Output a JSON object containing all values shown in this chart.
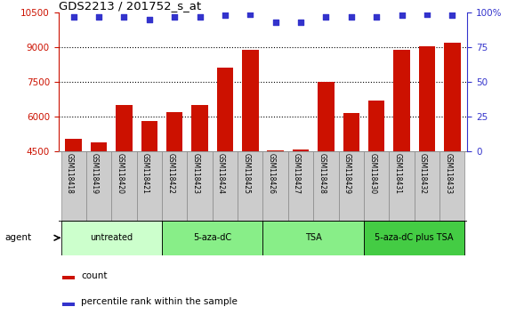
{
  "title": "GDS2213 / 201752_s_at",
  "samples": [
    "GSM118418",
    "GSM118419",
    "GSM118420",
    "GSM118421",
    "GSM118422",
    "GSM118423",
    "GSM118424",
    "GSM118425",
    "GSM118426",
    "GSM118427",
    "GSM118428",
    "GSM118429",
    "GSM118430",
    "GSM118431",
    "GSM118432",
    "GSM118433"
  ],
  "counts": [
    5050,
    4900,
    6500,
    5800,
    6200,
    6500,
    8100,
    8900,
    4550,
    4570,
    7500,
    6150,
    6700,
    8900,
    9050,
    9200
  ],
  "percentiles": [
    97,
    97,
    97,
    95,
    97,
    97,
    98,
    99,
    93,
    93,
    97,
    97,
    97,
    98,
    99,
    98
  ],
  "bar_color": "#cc1100",
  "dot_color": "#3333cc",
  "ylim_left": [
    4500,
    10500
  ],
  "ylim_right": [
    0,
    100
  ],
  "yticks_left": [
    4500,
    6000,
    7500,
    9000,
    10500
  ],
  "yticks_right": [
    0,
    25,
    50,
    75,
    100
  ],
  "grid_lines": [
    6000,
    7500,
    9000
  ],
  "groups": [
    {
      "label": "untreated",
      "start": 0,
      "end": 4,
      "color": "#ccffcc"
    },
    {
      "label": "5-aza-dC",
      "start": 4,
      "end": 8,
      "color": "#88ee88"
    },
    {
      "label": "TSA",
      "start": 8,
      "end": 12,
      "color": "#88ee88"
    },
    {
      "label": "5-aza-dC plus TSA",
      "start": 12,
      "end": 16,
      "color": "#44cc44"
    }
  ],
  "legend_count_color": "#cc1100",
  "legend_dot_color": "#3333cc",
  "agent_label": "agent",
  "background_color": "#ffffff",
  "grid_color": "#000000",
  "tick_color_left": "#cc1100",
  "tick_color_right": "#3333cc",
  "xtick_bg": "#cccccc",
  "xtick_border": "#888888"
}
